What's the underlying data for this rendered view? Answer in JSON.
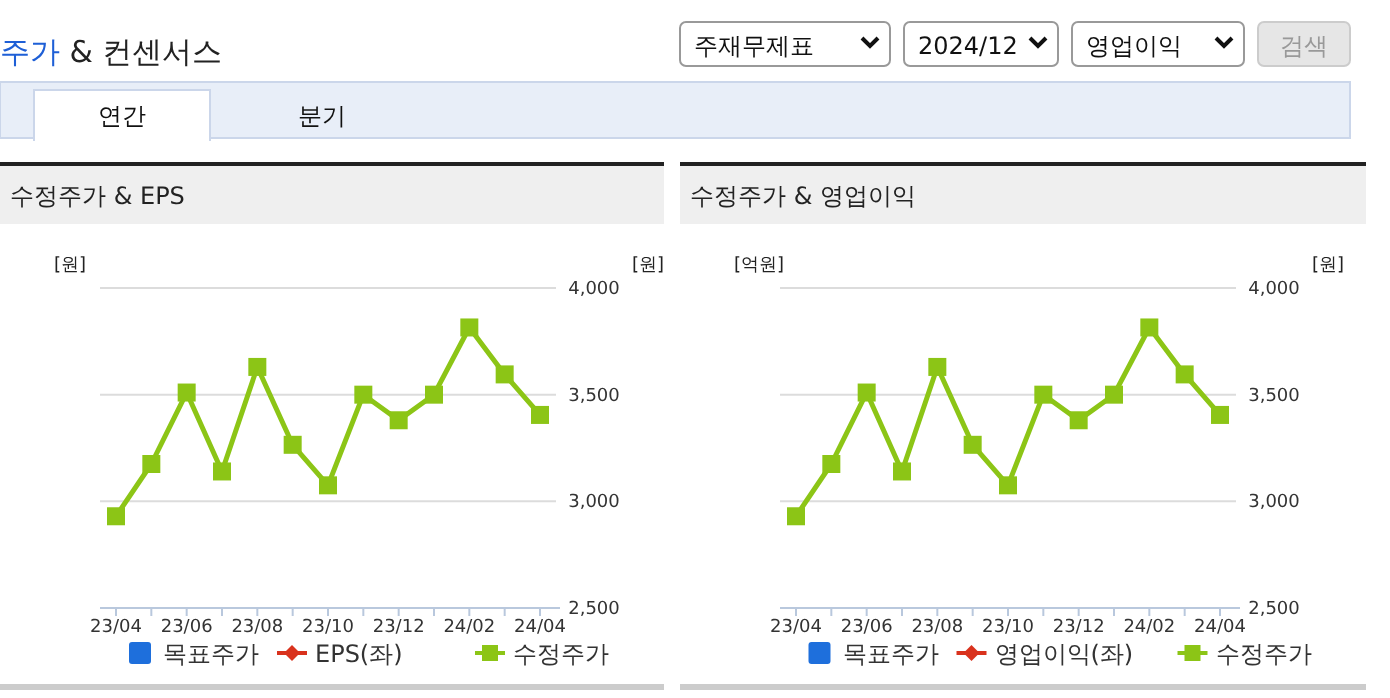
{
  "chart_data": [
    {
      "type": "other",
      "title": "주가 & 컨센서스",
      "annotations": [
        "주재무제표",
        "2024/12",
        "영업이익",
        "검색",
        "연간",
        "분기"
      ]
    },
    {
      "type": "line",
      "title": "수정주가 & EPS",
      "ylabel": "[원]",
      "y2label": "[원]",
      "categories": [
        "23/04",
        null,
        "23/06",
        null,
        "23/08",
        null,
        "23/10",
        null,
        "23/12",
        null,
        "24/02",
        null,
        "24/04"
      ],
      "y2lim": [
        2500,
        4000
      ],
      "y2ticks": [
        {
          "value": 2500,
          "label": "2,500"
        },
        {
          "value": 3000,
          "label": "3,000"
        },
        {
          "value": 3500,
          "label": "3,500"
        },
        {
          "value": 4000,
          "label": "4,000"
        }
      ],
      "grid": "y",
      "legend": "bottom",
      "marker": "square",
      "series": [
        {
          "name": "목표주가",
          "type": "bar",
          "color": "#1e6fdc",
          "values": [
            null,
            null,
            null,
            null,
            null,
            null,
            null,
            null,
            null,
            null,
            null,
            null,
            null
          ]
        },
        {
          "name": "EPS(좌)",
          "type": "line",
          "marker": "diamond",
          "color": "#d9321d",
          "values": [
            null,
            null,
            null,
            null,
            null,
            null,
            null,
            null,
            null,
            null,
            null,
            null,
            null
          ]
        },
        {
          "name": "수정주가",
          "type": "line",
          "color": "#8cc516",
          "axis": "y2",
          "values": [
            2930,
            3175,
            3510,
            3140,
            3630,
            3265,
            3075,
            3500,
            3380,
            3500,
            3815,
            3595,
            3405
          ]
        }
      ]
    },
    {
      "type": "line",
      "title": "수정주가 & 영업이익",
      "ylabel": "[억원]",
      "y2label": "[원]",
      "categories": [
        "23/04",
        null,
        "23/06",
        null,
        "23/08",
        null,
        "23/10",
        null,
        "23/12",
        null,
        "24/02",
        null,
        "24/04"
      ],
      "y2lim": [
        2500,
        4000
      ],
      "y2ticks": [
        {
          "value": 2500,
          "label": "2,500"
        },
        {
          "value": 3000,
          "label": "3,000"
        },
        {
          "value": 3500,
          "label": "3,500"
        },
        {
          "value": 4000,
          "label": "4,000"
        }
      ],
      "grid": "y",
      "legend": "bottom",
      "marker": "square",
      "series": [
        {
          "name": "목표주가",
          "type": "bar",
          "color": "#1e6fdc",
          "values": [
            null,
            null,
            null,
            null,
            null,
            null,
            null,
            null,
            null,
            null,
            null,
            null,
            null
          ]
        },
        {
          "name": "영업이익(좌)",
          "type": "line",
          "marker": "diamond",
          "color": "#d9321d",
          "values": [
            null,
            null,
            null,
            null,
            null,
            null,
            null,
            null,
            null,
            null,
            null,
            null,
            null
          ]
        },
        {
          "name": "수정주가",
          "type": "line",
          "color": "#8cc516",
          "axis": "y2",
          "values": [
            2930,
            3175,
            3510,
            3140,
            3630,
            3265,
            3075,
            3500,
            3380,
            3500,
            3815,
            3595,
            3405
          ]
        }
      ]
    }
  ]
}
